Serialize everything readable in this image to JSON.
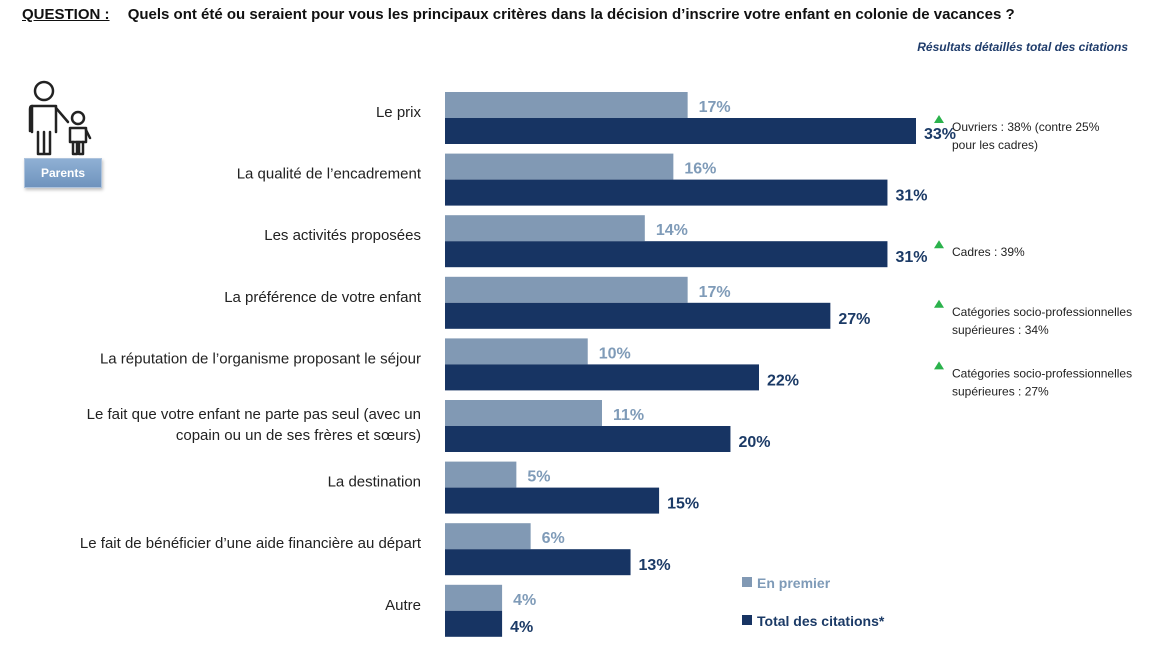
{
  "question": {
    "label": "QUESTION :",
    "text": "Quels ont été ou seraient pour vous les principaux critères dans la décision d’inscrire votre enfant en colonie de vacances ?"
  },
  "subtitle": "Résultats détaillés total des citations",
  "badge": "Parents",
  "icon": "parent-child-icon",
  "colors": {
    "light": "#8199b4",
    "dark": "#173463",
    "triangle": "#2bb24c"
  },
  "chart_data": {
    "type": "bar",
    "orientation": "horizontal",
    "categories": [
      [
        "Le prix"
      ],
      [
        "La qualité de l’encadrement"
      ],
      [
        "Les activités proposées"
      ],
      [
        "La préférence de votre enfant"
      ],
      [
        "La réputation de l’organisme proposant le séjour"
      ],
      [
        "Le fait que votre enfant ne parte pas seul (avec un",
        "copain ou un de ses frères et sœurs)"
      ],
      [
        "La destination"
      ],
      [
        "Le fait de bénéficier d’une aide financière au départ"
      ],
      [
        "Autre"
      ]
    ],
    "series": [
      {
        "name": "En premier",
        "values": [
          17,
          16,
          14,
          17,
          10,
          11,
          5,
          6,
          4
        ],
        "labels": [
          "17%",
          "16%",
          "14%",
          "17%",
          "10%",
          "11%",
          "5%",
          "6%",
          "4%"
        ]
      },
      {
        "name": "Total des citations*",
        "values": [
          33,
          31,
          31,
          27,
          22,
          20,
          15,
          13,
          4
        ],
        "labels": [
          "33%",
          "31%",
          "31%",
          "27%",
          "22%",
          "20%",
          "15%",
          "13%",
          "4%"
        ]
      }
    ],
    "annotations": [
      {
        "category_index": 0,
        "lines": [
          "Ouvriers : 38% (contre 25%",
          "pour les cadres)"
        ]
      },
      {
        "category_index": 2,
        "lines": [
          "Cadres : 39%"
        ]
      },
      {
        "category_index": 3,
        "lines": [
          "Catégories socio-professionnelles",
          "supérieures : 34%"
        ]
      },
      {
        "category_index": 4,
        "lines": [
          "Catégories socio-professionnelles",
          "supérieures : 27%"
        ]
      }
    ],
    "legend_position": "bottom-right",
    "xlim": [
      0,
      33
    ]
  }
}
